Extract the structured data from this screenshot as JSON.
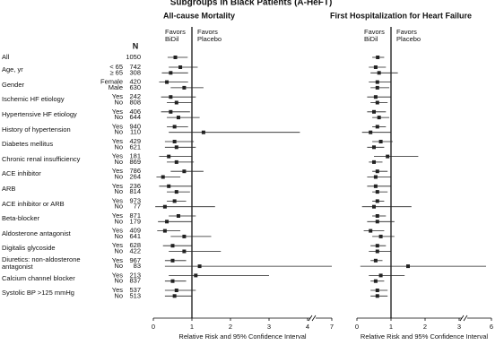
{
  "title": "Subgroups in Black Patients (A-HeFT)",
  "n_header": "N",
  "rows": [
    {
      "group": "All",
      "levels": [
        {
          "n": 1050
        }
      ]
    },
    {
      "group": "Age, yr",
      "levels": [
        {
          "level": "< 65",
          "n": 742
        },
        {
          "level": "≥ 65",
          "n": 308
        }
      ]
    },
    {
      "group": "Gender",
      "levels": [
        {
          "level": "Female",
          "n": 420
        },
        {
          "level": "Male",
          "n": 630
        }
      ]
    },
    {
      "group": "Ischemic HF etiology",
      "levels": [
        {
          "level": "Yes",
          "n": 242
        },
        {
          "level": "No",
          "n": 808
        }
      ]
    },
    {
      "group": "Hypertensive HF etiology",
      "levels": [
        {
          "level": "Yes",
          "n": 406
        },
        {
          "level": "No",
          "n": 644
        }
      ]
    },
    {
      "group": "History of hypertension",
      "levels": [
        {
          "level": "Yes",
          "n": 940
        },
        {
          "level": "No",
          "n": 110
        }
      ]
    },
    {
      "group": "Diabetes mellitus",
      "levels": [
        {
          "level": "Yes",
          "n": 429
        },
        {
          "level": "No",
          "n": 621
        }
      ]
    },
    {
      "group": "Chronic renal insufficiency",
      "levels": [
        {
          "level": "Yes",
          "n": 181
        },
        {
          "level": "No",
          "n": 869
        }
      ]
    },
    {
      "group": "ACE inhibitor",
      "levels": [
        {
          "level": "Yes",
          "n": 786
        },
        {
          "level": "No",
          "n": 264
        }
      ]
    },
    {
      "group": "ARB",
      "levels": [
        {
          "level": "Yes",
          "n": 236
        },
        {
          "level": "No",
          "n": 814
        }
      ]
    },
    {
      "group": "ACE inhibitor or ARB",
      "levels": [
        {
          "level": "Yes",
          "n": 973
        },
        {
          "level": "No",
          "n": 77
        }
      ]
    },
    {
      "group": "Beta-blocker",
      "levels": [
        {
          "level": "Yes",
          "n": 871
        },
        {
          "level": "No",
          "n": 179
        }
      ]
    },
    {
      "group": "Aldosterone antagonist",
      "levels": [
        {
          "level": "Yes",
          "n": 409
        },
        {
          "level": "No",
          "n": 641
        }
      ]
    },
    {
      "group": "Digitalis glycoside",
      "levels": [
        {
          "level": "Yes",
          "n": 628
        },
        {
          "level": "No",
          "n": 422
        }
      ]
    },
    {
      "group": "Diuretics: non-aldosterone antagonist",
      "levels": [
        {
          "level": "Yes",
          "n": 967
        },
        {
          "level": "No",
          "n": 83
        }
      ]
    },
    {
      "group": "Calcium channel blocker",
      "levels": [
        {
          "level": "Yes",
          "n": 213
        },
        {
          "level": "No",
          "n": 837
        }
      ]
    },
    {
      "group": "Systolic BP >125 mmHg",
      "levels": [
        {
          "level": "Yes",
          "n": 537
        },
        {
          "level": "No",
          "n": 513
        }
      ]
    }
  ],
  "chart_data": [
    {
      "type": "forest",
      "title": "All-cause Mortality",
      "xlabel": "Relative Risk and 95% Confidence Interval",
      "favors_left": "Favors BiDil",
      "favors_right": "Favors Placebo",
      "reference_line": 1,
      "xlim": [
        0,
        7
      ],
      "xticks": [
        0,
        1,
        2,
        3,
        4,
        7
      ],
      "axis_break_after": 4,
      "color": "#222222",
      "estimates": [
        0.57,
        0.7,
        0.45,
        0.35,
        0.8,
        0.45,
        0.6,
        0.45,
        0.65,
        0.55,
        1.3,
        0.55,
        0.6,
        0.4,
        0.6,
        0.8,
        0.25,
        0.4,
        0.6,
        0.55,
        0.3,
        0.65,
        0.35,
        0.3,
        0.8,
        0.5,
        0.8,
        0.5,
        1.2,
        1.1,
        0.5,
        0.6,
        0.55
      ],
      "ci_low": [
        0.37,
        0.4,
        0.22,
        0.15,
        0.45,
        0.2,
        0.35,
        0.2,
        0.35,
        0.35,
        0.4,
        0.3,
        0.3,
        0.15,
        0.35,
        0.45,
        0.08,
        0.15,
        0.35,
        0.35,
        0.05,
        0.4,
        0.12,
        0.1,
        0.45,
        0.25,
        0.4,
        0.3,
        0.3,
        0.4,
        0.3,
        0.3,
        0.3
      ],
      "ci_high": [
        0.89,
        1.15,
        0.9,
        0.9,
        1.3,
        1.1,
        1.0,
        0.95,
        1.2,
        0.9,
        3.8,
        1.05,
        1.1,
        1.0,
        1.05,
        1.3,
        0.7,
        1.0,
        0.95,
        0.85,
        1.6,
        1.1,
        1.0,
        0.7,
        1.5,
        1.0,
        1.75,
        0.85,
        7,
        3.0,
        0.85,
        1.1,
        1.0
      ]
    },
    {
      "type": "forest",
      "title": "First Hospitalization for Heart Failure",
      "xlabel": "Relative Risk and 95% Confidence Interval",
      "favors_left": "Favors BiDil",
      "favors_right": "Favors Placebo",
      "reference_line": 1,
      "xlim": [
        0,
        6
      ],
      "xticks": [
        0,
        1,
        2,
        3,
        6
      ],
      "axis_break_after": 3,
      "color": "#222222",
      "estimates": [
        0.61,
        0.55,
        0.65,
        0.6,
        0.6,
        0.55,
        0.6,
        0.5,
        0.65,
        0.6,
        0.4,
        0.7,
        0.5,
        0.9,
        0.5,
        0.6,
        0.55,
        0.55,
        0.6,
        0.6,
        0.5,
        0.6,
        0.6,
        0.4,
        0.7,
        0.6,
        0.6,
        0.55,
        1.5,
        0.7,
        0.55,
        0.6,
        0.6
      ],
      "ci_low": [
        0.45,
        0.35,
        0.4,
        0.35,
        0.4,
        0.3,
        0.4,
        0.3,
        0.45,
        0.45,
        0.15,
        0.45,
        0.3,
        0.5,
        0.35,
        0.45,
        0.3,
        0.3,
        0.45,
        0.45,
        0.15,
        0.45,
        0.3,
        0.2,
        0.45,
        0.4,
        0.35,
        0.4,
        0.1,
        0.35,
        0.4,
        0.4,
        0.4
      ],
      "ci_high": [
        0.8,
        0.85,
        1.2,
        1.0,
        0.95,
        1.0,
        0.9,
        0.85,
        0.95,
        0.85,
        1.0,
        1.05,
        0.8,
        1.8,
        0.75,
        0.9,
        1.0,
        1.0,
        0.9,
        0.8,
        1.6,
        0.85,
        1.1,
        0.8,
        1.1,
        0.85,
        1.0,
        0.75,
        5.5,
        1.4,
        0.8,
        0.9,
        0.9
      ]
    }
  ]
}
